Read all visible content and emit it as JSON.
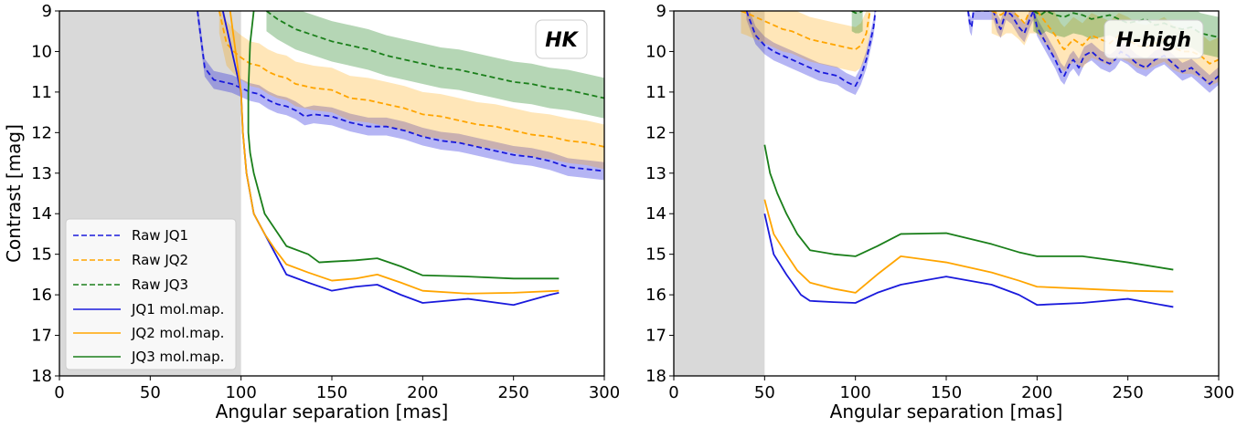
{
  "chart_data": [
    {
      "type": "line",
      "badge": "HK",
      "xlabel": "Angular separation [mas]",
      "ylabel": "Contrast [mag]",
      "xlim": [
        0,
        300
      ],
      "ylim": [
        18,
        9
      ],
      "xticks": [
        0,
        50,
        100,
        150,
        200,
        250,
        300
      ],
      "yticks": [
        9,
        10,
        11,
        12,
        13,
        14,
        15,
        16,
        17,
        18
      ],
      "shaded_region": [
        0,
        100
      ],
      "legend": {
        "position": "lower-left",
        "entries": [
          "Raw JQ1",
          "Raw JQ2",
          "Raw JQ3",
          "JQ1 mol.map.",
          "JQ2 mol.map.",
          "JQ3 mol.map."
        ]
      },
      "series": [
        {
          "name": "Raw JQ1",
          "style": "dashed",
          "color": "#1a1adc",
          "band": true,
          "x": [
            76,
            80,
            85,
            90,
            95,
            100,
            105,
            110,
            115,
            120,
            125,
            130,
            135,
            140,
            150,
            160,
            170,
            180,
            190,
            200,
            210,
            220,
            230,
            240,
            250,
            260,
            270,
            280,
            290,
            300
          ],
          "y": [
            9.0,
            10.4,
            10.7,
            10.75,
            10.8,
            10.9,
            11.0,
            11.05,
            11.2,
            11.3,
            11.35,
            11.45,
            11.6,
            11.55,
            11.6,
            11.75,
            11.85,
            11.85,
            11.95,
            12.1,
            12.2,
            12.25,
            12.35,
            12.45,
            12.55,
            12.6,
            12.7,
            12.85,
            12.9,
            12.95
          ]
        },
        {
          "name": "Raw JQ2",
          "style": "dashed",
          "color": "#ffa500",
          "band": true,
          "x": [
            88,
            92,
            96,
            100,
            105,
            110,
            115,
            120,
            125,
            130,
            140,
            150,
            160,
            170,
            180,
            190,
            200,
            210,
            220,
            230,
            240,
            250,
            260,
            270,
            280,
            290,
            300
          ],
          "y": [
            9.0,
            9.8,
            10.0,
            10.15,
            10.3,
            10.35,
            10.5,
            10.6,
            10.65,
            10.8,
            10.9,
            10.95,
            11.15,
            11.2,
            11.3,
            11.4,
            11.55,
            11.6,
            11.7,
            11.8,
            11.85,
            11.95,
            12.05,
            12.1,
            12.2,
            12.25,
            12.35
          ]
        },
        {
          "name": "Raw JQ3",
          "style": "dashed",
          "color": "#1a7f1a",
          "band": true,
          "x": [
            114,
            120,
            130,
            140,
            150,
            160,
            170,
            180,
            190,
            200,
            210,
            220,
            230,
            240,
            250,
            260,
            270,
            280,
            290,
            300
          ],
          "y": [
            9.0,
            9.2,
            9.45,
            9.6,
            9.75,
            9.85,
            9.95,
            10.1,
            10.2,
            10.3,
            10.4,
            10.45,
            10.55,
            10.65,
            10.75,
            10.8,
            10.9,
            10.95,
            11.05,
            11.15
          ]
        },
        {
          "name": "JQ1 mol.map.",
          "style": "solid",
          "color": "#1a1adc",
          "x": [
            90,
            95,
            100,
            101,
            103,
            107,
            113,
            119,
            125,
            137,
            150,
            163,
            175,
            188,
            200,
            225,
            250,
            270,
            275
          ],
          "y": [
            9.0,
            10.0,
            11.0,
            12.0,
            13.0,
            14.0,
            14.5,
            15.0,
            15.5,
            15.7,
            15.9,
            15.8,
            15.75,
            16.0,
            16.2,
            16.1,
            16.25,
            16.0,
            15.95
          ]
        },
        {
          "name": "JQ2 mol.map.",
          "style": "solid",
          "color": "#ffa500",
          "x": [
            94,
            97,
            100,
            101,
            103,
            107,
            113,
            119,
            125,
            137,
            150,
            163,
            175,
            188,
            200,
            225,
            250,
            275
          ],
          "y": [
            9.0,
            10.0,
            11.0,
            12.0,
            13.0,
            14.0,
            14.5,
            14.9,
            15.25,
            15.45,
            15.65,
            15.6,
            15.5,
            15.7,
            15.9,
            15.97,
            15.95,
            15.9
          ]
        },
        {
          "name": "JQ3 mol.map.",
          "style": "solid",
          "color": "#1a7f1a",
          "x": [
            107,
            105,
            104,
            104,
            105,
            107,
            113,
            119,
            125,
            137,
            143,
            150,
            163,
            175,
            188,
            200,
            225,
            250,
            275
          ],
          "y": [
            9.0,
            9.8,
            11.0,
            12.0,
            12.5,
            13.0,
            14.0,
            14.4,
            14.8,
            15.0,
            15.2,
            15.18,
            15.15,
            15.1,
            15.3,
            15.52,
            15.55,
            15.6,
            15.6
          ]
        }
      ]
    },
    {
      "type": "line",
      "badge": "H-high",
      "xlabel": "Angular separation [mas]",
      "ylabel": "",
      "xlim": [
        0,
        300
      ],
      "ylim": [
        18,
        9
      ],
      "xticks": [
        0,
        50,
        100,
        150,
        200,
        250,
        300
      ],
      "yticks": [
        9,
        10,
        11,
        12,
        13,
        14,
        15,
        16,
        17,
        18
      ],
      "shaded_region": [
        0,
        50
      ],
      "series": [
        {
          "name": "Raw JQ1",
          "style": "dashed",
          "color": "#1a1adc",
          "band": true,
          "x": [
            40,
            45,
            50,
            55,
            60,
            65,
            70,
            75,
            80,
            85,
            90,
            95,
            100,
            103,
            106,
            110,
            111
          ],
          "y": [
            9.0,
            9.6,
            9.85,
            10.0,
            10.1,
            10.2,
            10.3,
            10.4,
            10.5,
            10.55,
            10.6,
            10.75,
            10.85,
            10.6,
            10.2,
            9.4,
            9.0
          ]
        },
        {
          "name": "Raw JQ1",
          "style": "dashed",
          "color": "#1a1adc",
          "band": true,
          "x": [
            162,
            163,
            164,
            165,
            176,
            178,
            180,
            183,
            186,
            190,
            193,
            196,
            198,
            200,
            205,
            210,
            213,
            215,
            218,
            220,
            223,
            226,
            230,
            235,
            240,
            243,
            246,
            250,
            255,
            260,
            265,
            270,
            275,
            280,
            285,
            290,
            295,
            300
          ],
          "y": [
            9.0,
            9.3,
            9.4,
            9.0,
            9.0,
            9.3,
            9.45,
            9.0,
            9.1,
            9.4,
            9.55,
            9.2,
            9.0,
            9.4,
            9.8,
            10.2,
            10.5,
            10.6,
            10.3,
            10.2,
            10.4,
            10.1,
            10.0,
            10.2,
            10.3,
            10.2,
            10.0,
            10.1,
            10.3,
            10.4,
            10.2,
            10.1,
            10.3,
            10.5,
            10.4,
            10.6,
            10.8,
            10.6
          ]
        },
        {
          "name": "Raw JQ2",
          "style": "dashed",
          "color": "#ffa500",
          "band": true,
          "x": [
            37,
            40,
            50,
            55,
            60,
            65,
            70,
            75,
            80,
            85,
            90,
            95,
            100,
            103,
            106,
            108
          ],
          "y": [
            9.0,
            9.05,
            9.25,
            9.35,
            9.45,
            9.5,
            9.6,
            9.7,
            9.75,
            9.8,
            9.85,
            9.9,
            9.95,
            9.85,
            9.55,
            9.0
          ]
        },
        {
          "name": "Raw JQ2",
          "style": "dashed",
          "color": "#ffa500",
          "band": true,
          "x": [
            175,
            180,
            183,
            186,
            190,
            193,
            196,
            200,
            205,
            210,
            213,
            215,
            220,
            225,
            230,
            235,
            240,
            245,
            250,
            255,
            260,
            265,
            270,
            275,
            280,
            285,
            290,
            295,
            300
          ],
          "y": [
            9.0,
            9.1,
            9.0,
            9.0,
            9.15,
            9.3,
            9.0,
            9.0,
            9.3,
            9.6,
            9.85,
            9.95,
            9.7,
            9.85,
            9.6,
            9.7,
            9.8,
            9.6,
            9.7,
            9.85,
            9.9,
            9.8,
            9.7,
            9.9,
            10.0,
            10.0,
            10.1,
            10.3,
            10.2
          ]
        },
        {
          "name": "Raw JQ3",
          "style": "dashed",
          "color": "#1a7f1a",
          "band": true,
          "x": [
            98,
            100,
            102,
            104
          ],
          "y": [
            9.0,
            9.05,
            9.05,
            9.0
          ]
        },
        {
          "name": "Raw JQ3",
          "style": "dashed",
          "color": "#1a7f1a",
          "band": true,
          "x": [
            198,
            202,
            205,
            210,
            215,
            220,
            225,
            230,
            235,
            240,
            245,
            250,
            255,
            260,
            265,
            270,
            275,
            280,
            285,
            290,
            295,
            300
          ],
          "y": [
            9.0,
            9.1,
            9.0,
            9.1,
            9.15,
            9.05,
            9.1,
            9.2,
            9.15,
            9.1,
            9.2,
            9.3,
            9.25,
            9.2,
            9.35,
            9.3,
            9.4,
            9.45,
            9.4,
            9.55,
            9.6,
            9.65
          ]
        },
        {
          "name": "JQ1 mol.map.",
          "style": "solid",
          "color": "#1a1adc",
          "x": [
            50,
            55,
            62,
            70,
            75,
            88,
            100,
            112,
            125,
            150,
            175,
            190,
            200,
            225,
            250,
            275
          ],
          "y": [
            14.0,
            15.0,
            15.5,
            16.0,
            16.15,
            16.18,
            16.2,
            15.95,
            15.75,
            15.55,
            15.75,
            16.0,
            16.25,
            16.2,
            16.1,
            16.3
          ]
        },
        {
          "name": "JQ2 mol.map.",
          "style": "solid",
          "color": "#ffa500",
          "x": [
            50,
            52,
            55,
            62,
            68,
            75,
            88,
            100,
            112,
            125,
            150,
            175,
            190,
            200,
            225,
            250,
            275
          ],
          "y": [
            13.65,
            14.0,
            14.5,
            15.0,
            15.4,
            15.7,
            15.85,
            15.95,
            15.5,
            15.05,
            15.2,
            15.45,
            15.65,
            15.8,
            15.85,
            15.9,
            15.92
          ]
        },
        {
          "name": "JQ3 mol.map.",
          "style": "solid",
          "color": "#1a7f1a",
          "x": [
            50,
            53,
            57,
            62,
            68,
            75,
            88,
            100,
            112,
            125,
            150,
            175,
            190,
            200,
            225,
            250,
            275
          ],
          "y": [
            12.3,
            13.0,
            13.5,
            14.0,
            14.5,
            14.9,
            15.0,
            15.05,
            14.8,
            14.5,
            14.48,
            14.75,
            14.95,
            15.05,
            15.05,
            15.2,
            15.38
          ]
        }
      ]
    }
  ]
}
